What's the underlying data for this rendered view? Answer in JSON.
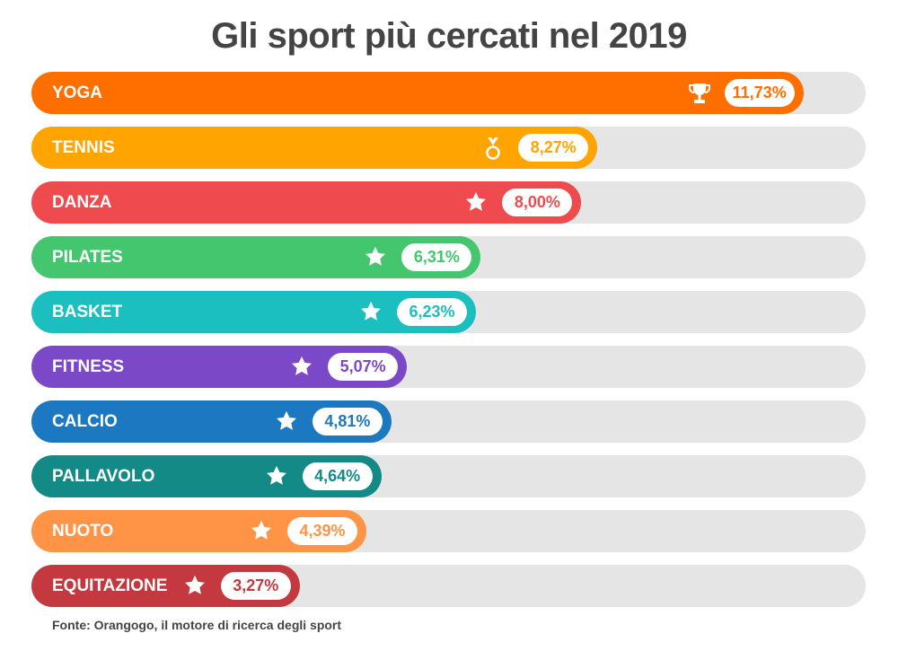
{
  "chart_data": {
    "type": "bar",
    "orientation": "horizontal",
    "title": "Gli sport più cercati nel 2019",
    "categories": [
      "YOGA",
      "TENNIS",
      "DANZA",
      "PILATES",
      "BASKET",
      "FITNESS",
      "CALCIO",
      "PALLAVOLO",
      "NUOTO",
      "EQUITAZIONE"
    ],
    "values": [
      11.73,
      8.27,
      8.0,
      6.31,
      6.23,
      5.07,
      4.81,
      4.64,
      4.39,
      3.27
    ],
    "value_labels": [
      "11,73%",
      "8,27%",
      "8,00%",
      "6,31%",
      "6,23%",
      "5,07%",
      "4,81%",
      "4,64%",
      "4,39%",
      "3,27%"
    ],
    "colors": [
      "#FF6F00",
      "#FFA400",
      "#EF4B4F",
      "#43C66E",
      "#1BBFBF",
      "#7B48C8",
      "#1C78C0",
      "#138A85",
      "#FF9447",
      "#C4393F"
    ],
    "icons": [
      "trophy-icon",
      "medal-icon",
      "star-icon",
      "star-icon",
      "star-icon",
      "star-icon",
      "star-icon",
      "star-icon",
      "star-icon",
      "star-icon"
    ],
    "track_color": "#E5E5E5",
    "grid": false,
    "source": "Fonte: Orangogo, il motore di ricerca degli sport"
  }
}
